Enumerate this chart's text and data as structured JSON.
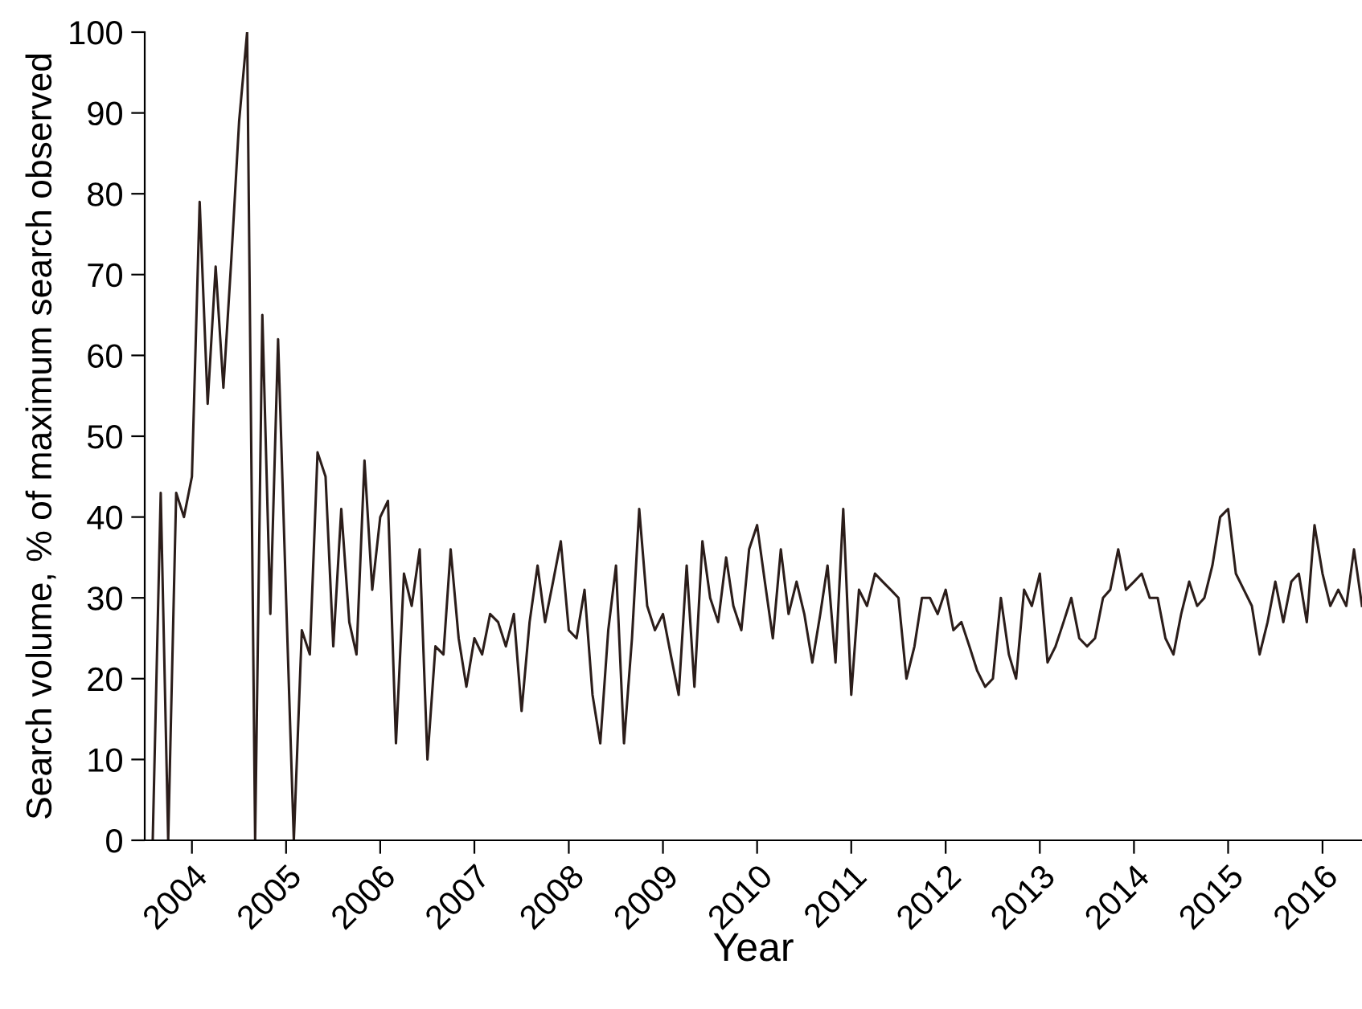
{
  "chart_data": {
    "type": "line",
    "xlabel": "Year",
    "ylabel": "Search volume, % of maximum search observed",
    "x": [
      "2004-01",
      "2004-02",
      "2004-03",
      "2004-04",
      "2004-05",
      "2004-06",
      "2004-07",
      "2004-08",
      "2004-09",
      "2004-10",
      "2004-11",
      "2004-12",
      "2005-01",
      "2005-02",
      "2005-03",
      "2005-04",
      "2005-05",
      "2005-06",
      "2005-07",
      "2005-08",
      "2005-09",
      "2005-10",
      "2005-11",
      "2005-12",
      "2006-01",
      "2006-02",
      "2006-03",
      "2006-04",
      "2006-05",
      "2006-06",
      "2006-07",
      "2006-08",
      "2006-09",
      "2006-10",
      "2006-11",
      "2006-12",
      "2007-01",
      "2007-02",
      "2007-03",
      "2007-04",
      "2007-05",
      "2007-06",
      "2007-07",
      "2007-08",
      "2007-09",
      "2007-10",
      "2007-11",
      "2007-12",
      "2008-01",
      "2008-02",
      "2008-03",
      "2008-04",
      "2008-05",
      "2008-06",
      "2008-07",
      "2008-08",
      "2008-09",
      "2008-10",
      "2008-11",
      "2008-12",
      "2009-01",
      "2009-02",
      "2009-03",
      "2009-04",
      "2009-05",
      "2009-06",
      "2009-07",
      "2009-08",
      "2009-09",
      "2009-10",
      "2009-11",
      "2009-12",
      "2010-01",
      "2010-02",
      "2010-03",
      "2010-04",
      "2010-05",
      "2010-06",
      "2010-07",
      "2010-08",
      "2010-09",
      "2010-10",
      "2010-11",
      "2010-12",
      "2011-01",
      "2011-02",
      "2011-03",
      "2011-04",
      "2011-05",
      "2011-06",
      "2011-07",
      "2011-08",
      "2011-09",
      "2011-10",
      "2011-11",
      "2011-12",
      "2012-01",
      "2012-02",
      "2012-03",
      "2012-04",
      "2012-05",
      "2012-06",
      "2012-07",
      "2012-08",
      "2012-09",
      "2012-10",
      "2012-11",
      "2012-12",
      "2013-01",
      "2013-02",
      "2013-03",
      "2013-04",
      "2013-05",
      "2013-06",
      "2013-07",
      "2013-08",
      "2013-09",
      "2013-10",
      "2013-11",
      "2013-12",
      "2014-01",
      "2014-02",
      "2014-03",
      "2014-04",
      "2014-05",
      "2014-06",
      "2014-07",
      "2014-08",
      "2014-09",
      "2014-10",
      "2014-11",
      "2014-12",
      "2015-01",
      "2015-02",
      "2015-03",
      "2015-04",
      "2015-05",
      "2015-06",
      "2015-07",
      "2015-08",
      "2015-09",
      "2015-10",
      "2015-11",
      "2015-12",
      "2016-01",
      "2016-02",
      "2016-03",
      "2016-04",
      "2016-05",
      "2016-06",
      "2016-07",
      "2016-08",
      "2016-09",
      "2016-10",
      "2016-11"
    ],
    "series": [
      {
        "color": "#2b1d1a",
        "values": [
          0,
          43,
          0,
          43,
          40,
          45,
          79,
          54,
          71,
          56,
          72,
          89,
          100,
          0,
          65,
          28,
          62,
          30,
          0,
          26,
          23,
          48,
          45,
          24,
          41,
          27,
          23,
          47,
          31,
          40,
          42,
          12,
          33,
          29,
          36,
          10,
          24,
          23,
          36,
          25,
          19,
          25,
          23,
          28,
          27,
          24,
          28,
          16,
          27,
          34,
          27,
          32,
          37,
          26,
          25,
          31,
          18,
          12,
          26,
          34,
          12,
          25,
          41,
          29,
          26,
          28,
          23,
          18,
          34,
          19,
          37,
          30,
          27,
          35,
          29,
          26,
          36,
          39,
          32,
          25,
          36,
          28,
          32,
          28,
          22,
          28,
          34,
          22,
          41,
          18,
          31,
          29,
          33,
          32,
          31,
          30,
          20,
          24,
          30,
          30,
          28,
          31,
          26,
          27,
          24,
          21,
          19,
          20,
          30,
          23,
          20,
          31,
          29,
          33,
          22,
          24,
          27,
          30,
          25,
          24,
          25,
          30,
          31,
          36,
          31,
          32,
          33,
          30,
          30,
          25,
          23,
          28,
          32,
          29,
          30,
          34,
          40,
          41,
          33,
          31,
          29,
          23,
          27,
          32,
          27,
          32,
          33,
          27,
          39,
          33,
          29,
          31,
          29,
          36,
          29
        ]
      }
    ],
    "xlim": [
      "2003-12",
      "2016-11"
    ],
    "xticks": [
      {
        "value": "2004-06",
        "label": "2004"
      },
      {
        "value": "2005-06",
        "label": "2005"
      },
      {
        "value": "2006-06",
        "label": "2006"
      },
      {
        "value": "2007-06",
        "label": "2007"
      },
      {
        "value": "2008-06",
        "label": "2008"
      },
      {
        "value": "2009-06",
        "label": "2009"
      },
      {
        "value": "2010-06",
        "label": "2010"
      },
      {
        "value": "2011-06",
        "label": "2011"
      },
      {
        "value": "2012-06",
        "label": "2012"
      },
      {
        "value": "2013-06",
        "label": "2013"
      },
      {
        "value": "2014-06",
        "label": "2014"
      },
      {
        "value": "2015-06",
        "label": "2015"
      },
      {
        "value": "2016-06",
        "label": "2016"
      }
    ],
    "ylim": [
      0,
      100
    ],
    "yticks": [
      0,
      10,
      20,
      30,
      40,
      50,
      60,
      70,
      80,
      90,
      100
    ],
    "marker": "none",
    "line_style": "solid"
  }
}
